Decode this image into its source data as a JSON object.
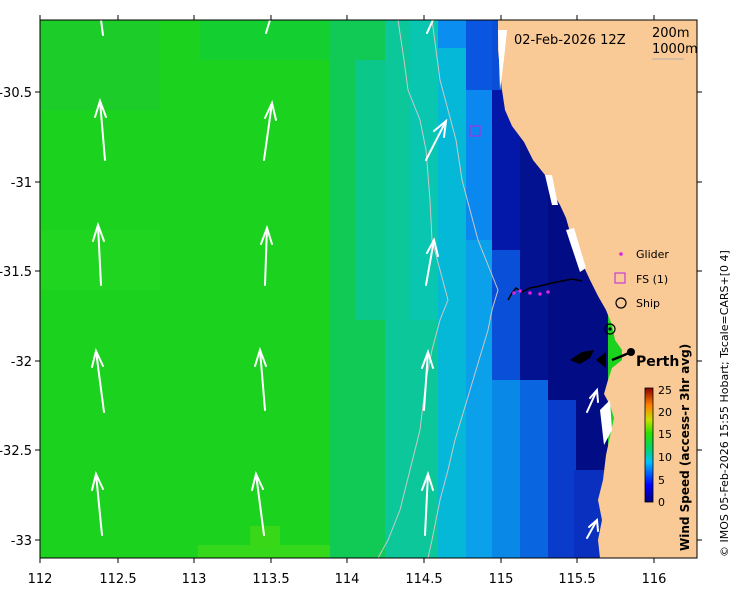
{
  "map": {
    "timestamp": "02-Feb-2026 12Z",
    "contours": [
      "200m",
      "1000m"
    ],
    "lon_ticks": [
      "112",
      "112.5",
      "113",
      "113.5",
      "114",
      "114.5",
      "115",
      "115.5",
      "116"
    ],
    "lat_ticks": [
      "-30.5",
      "-31",
      "-31.5",
      "-32",
      "-32.5",
      "-33"
    ],
    "legend": {
      "glider": "Glider",
      "fs": "FS (1)",
      "ship": "Ship"
    },
    "place": "Perth",
    "colorbar": {
      "label": "Wind Speed (access-r 3hr avg)",
      "ticks": [
        "25",
        "20",
        "15",
        "10",
        "5",
        "0"
      ],
      "range": [
        0,
        25
      ]
    },
    "credit": "© IMOS 05-Feb-2026 15:55 Hobart; Tscale=CARS+[0 4]",
    "colors": {
      "land": "#f9c996",
      "wind_green": "#19d31e",
      "wind_teal": "#0bc8b5",
      "wind_blue": "#0a56d8",
      "wind_navy": "#020c84",
      "glider": "#e020e0",
      "fs": "#c020e0"
    },
    "icons": [
      "wind-arrow-icon",
      "glider-marker-icon",
      "fs-marker-icon",
      "ship-marker-icon",
      "city-dot-icon"
    ]
  }
}
